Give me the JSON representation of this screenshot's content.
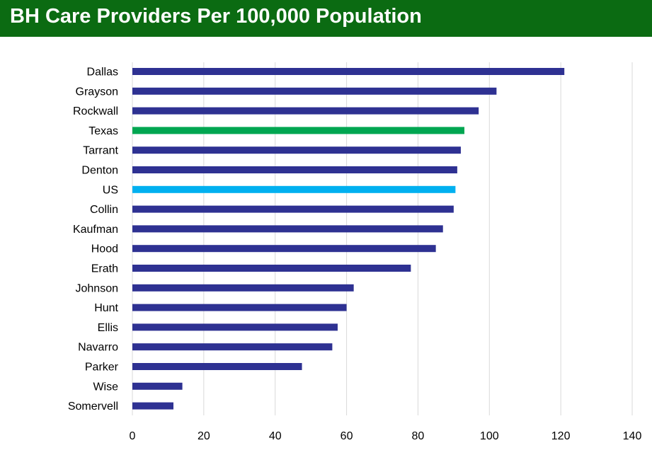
{
  "header": {
    "title": "BH Care Providers Per 100,000 Population"
  },
  "colors": {
    "title_bg": "#0b6b12",
    "default_bar": "#2e3192",
    "texas_bar": "#00a651",
    "us_bar": "#00b0f0",
    "grid": "#d9d9d9"
  },
  "chart_data": {
    "type": "bar",
    "orientation": "horizontal",
    "title": "BH Care Providers Per 100,000 Population",
    "xlabel": "",
    "ylabel": "",
    "xlim": [
      0,
      140
    ],
    "x_ticks": [
      0,
      20,
      40,
      60,
      80,
      100,
      120,
      140
    ],
    "grid": true,
    "categories": [
      "Dallas",
      "Grayson",
      "Rockwall",
      "Texas",
      "Tarrant",
      "Denton",
      "US",
      "Collin",
      "Kaufman",
      "Hood",
      "Erath",
      "Johnson",
      "Hunt",
      "Ellis",
      "Navarro",
      "Parker",
      "Wise",
      "Somervell"
    ],
    "values": [
      121,
      102,
      97,
      93,
      92,
      91,
      90.5,
      90,
      87,
      85,
      78,
      62,
      60,
      57.5,
      56,
      47.5,
      14,
      11.5
    ],
    "bar_colors": [
      "#2e3192",
      "#2e3192",
      "#2e3192",
      "#00a651",
      "#2e3192",
      "#2e3192",
      "#00b0f0",
      "#2e3192",
      "#2e3192",
      "#2e3192",
      "#2e3192",
      "#2e3192",
      "#2e3192",
      "#2e3192",
      "#2e3192",
      "#2e3192",
      "#2e3192",
      "#2e3192"
    ]
  }
}
